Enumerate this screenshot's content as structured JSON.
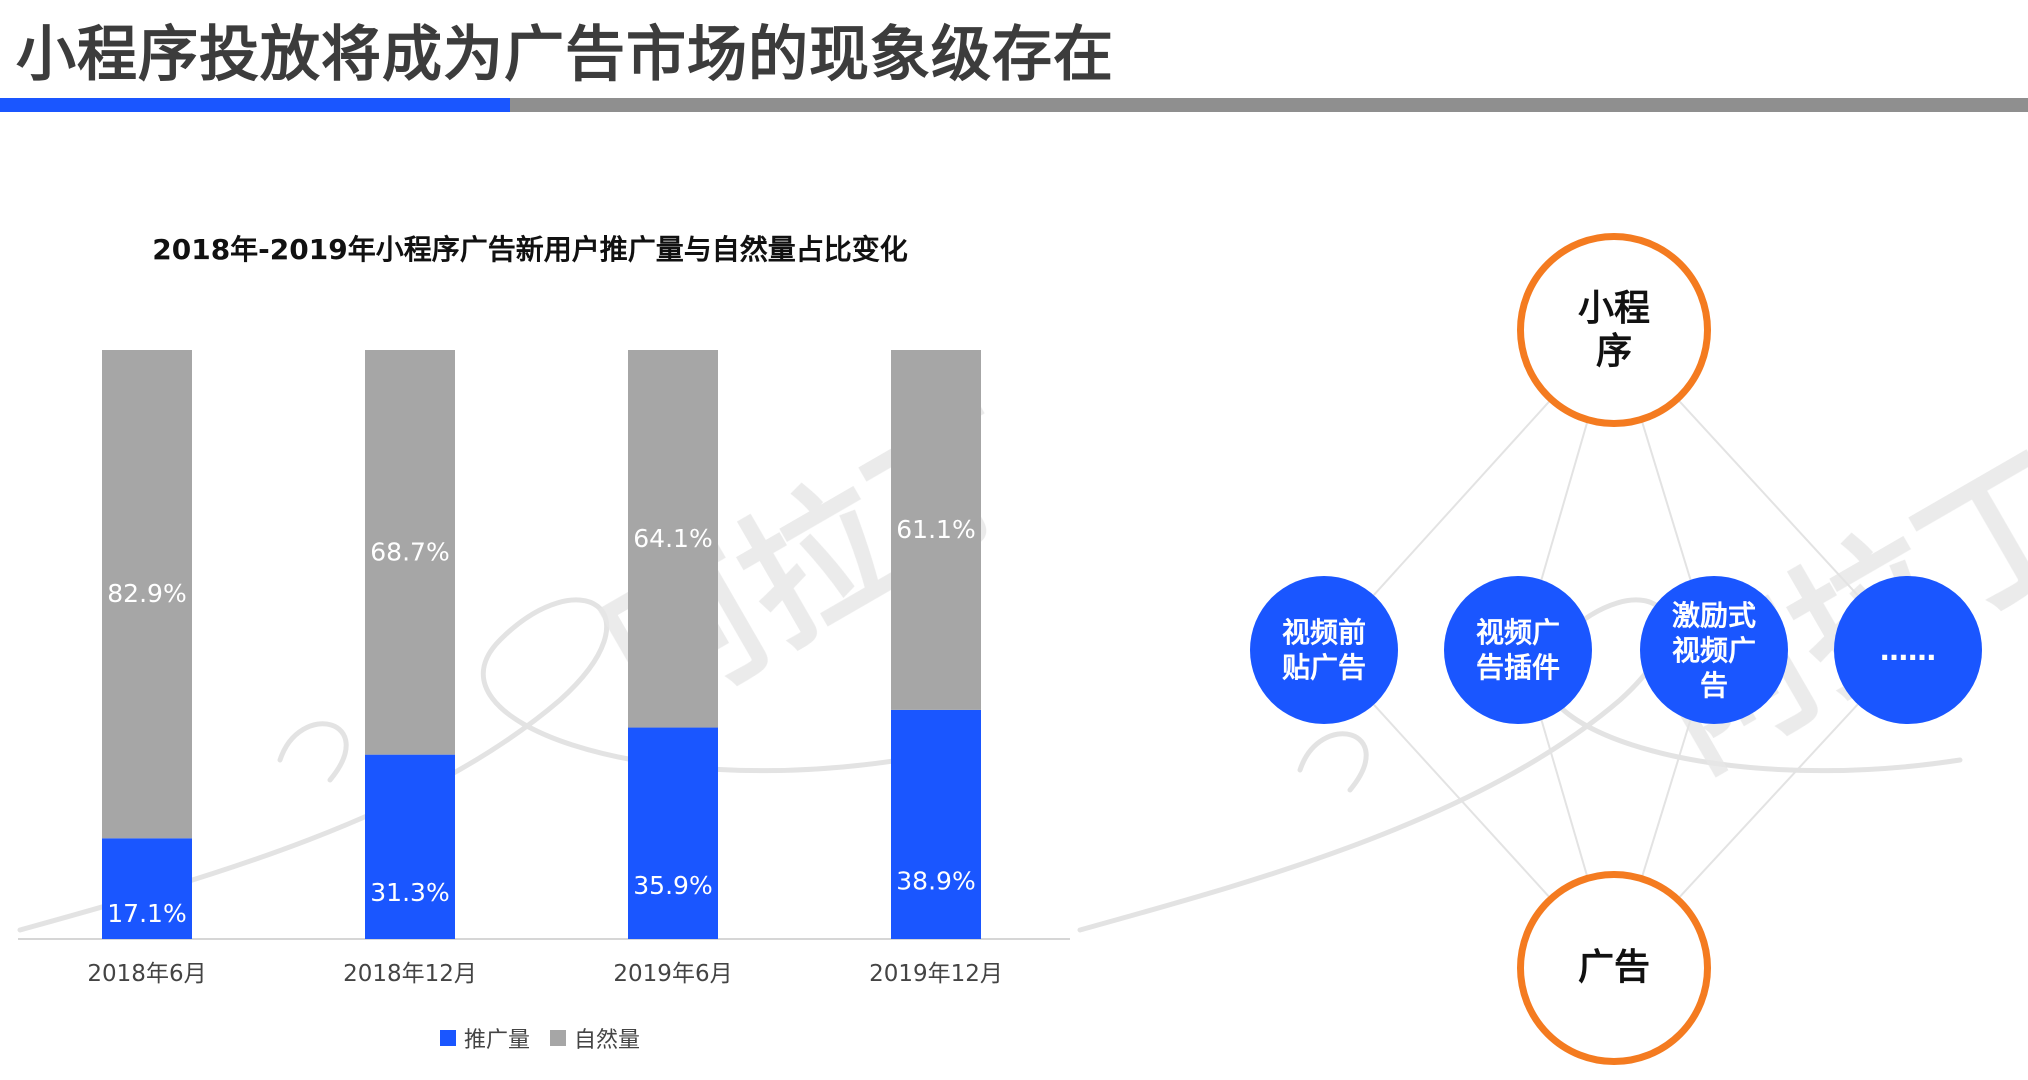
{
  "page": {
    "title": "小程序投放将成为广告市场的现象级存在"
  },
  "colors": {
    "accent_blue": "#1a56ff",
    "neutral_gray": "#a6a6a6",
    "node_orange": "#f47b20"
  },
  "chart_data": {
    "type": "bar",
    "stacked": true,
    "title": "2018年-2019年小程序广告新用户推广量与自然量占比变化",
    "categories": [
      "2018年6月",
      "2018年12月",
      "2019年6月",
      "2019年12月"
    ],
    "series": [
      {
        "name": "推广量",
        "color": "#1a56ff",
        "values": [
          17.1,
          31.3,
          35.9,
          38.9
        ],
        "labels": [
          "17.1%",
          "31.3%",
          "35.9%",
          "38.9%"
        ]
      },
      {
        "name": "自然量",
        "color": "#a6a6a6",
        "values": [
          82.9,
          68.7,
          64.1,
          61.1
        ],
        "labels": [
          "82.9%",
          "68.7%",
          "64.1%",
          "61.1%"
        ]
      }
    ],
    "ylim": [
      0,
      100
    ],
    "grid": false,
    "legend_position": "bottom"
  },
  "diagram": {
    "top_node": {
      "lines": [
        "小程",
        "序"
      ]
    },
    "bottom_node": {
      "lines": [
        "广告"
      ]
    },
    "middle_nodes": [
      {
        "lines": [
          "视频前",
          "贴广告"
        ]
      },
      {
        "lines": [
          "视频广",
          "告插件"
        ]
      },
      {
        "lines": [
          "激励式",
          "视频广",
          "告"
        ]
      },
      {
        "lines": [
          "……"
        ]
      }
    ]
  },
  "watermark": {
    "text": "阿拉丁"
  }
}
